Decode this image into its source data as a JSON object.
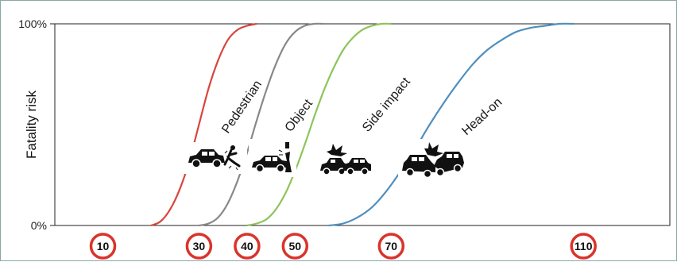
{
  "chart_data": {
    "type": "line",
    "ylabel": "Fatality risk",
    "y_ticks": [
      "100%",
      "0%"
    ],
    "ylim": [
      0,
      100
    ],
    "x_markers": [
      "10",
      "30",
      "40",
      "50",
      "70",
      "110"
    ],
    "xlim": [
      0,
      128
    ],
    "series": [
      {
        "name": "Pedestrian",
        "color": "#d9453d",
        "x": [
          20,
          22,
          24,
          26,
          28,
          30,
          32,
          34,
          36,
          38,
          40,
          42
        ],
        "y": [
          0,
          2,
          8,
          18,
          32,
          50,
          68,
          82,
          92,
          97,
          99,
          100
        ]
      },
      {
        "name": "Object",
        "color": "#888888",
        "x": [
          30,
          32,
          34,
          36,
          38,
          40,
          42,
          44,
          46,
          48,
          50,
          52,
          54,
          56
        ],
        "y": [
          0,
          1,
          4,
          11,
          22,
          36,
          52,
          67,
          80,
          90,
          96,
          99,
          100,
          100
        ]
      },
      {
        "name": "Side impact",
        "color": "#8dc45a",
        "x": [
          40,
          42,
          44,
          46,
          48,
          50,
          52,
          54,
          56,
          58,
          60,
          62,
          64,
          66,
          68,
          70
        ],
        "y": [
          0,
          1,
          3,
          8,
          16,
          27,
          40,
          54,
          67,
          78,
          87,
          93,
          97,
          99,
          100,
          100
        ]
      },
      {
        "name": "Head-on",
        "color": "#4f8fbf",
        "x": [
          57,
          60,
          63,
          66,
          69,
          72,
          75,
          78,
          81,
          84,
          87,
          90,
          93,
          96,
          99,
          102,
          105,
          108
        ],
        "y": [
          0,
          1,
          4,
          9,
          17,
          27,
          38,
          50,
          61,
          71,
          80,
          87,
          92,
          96,
          98,
          99,
          100,
          100
        ]
      }
    ],
    "icons": [
      "car-hitting-pedestrian-icon",
      "car-hitting-pole-icon",
      "side-impact-crash-icon",
      "head-on-crash-icon"
    ]
  }
}
